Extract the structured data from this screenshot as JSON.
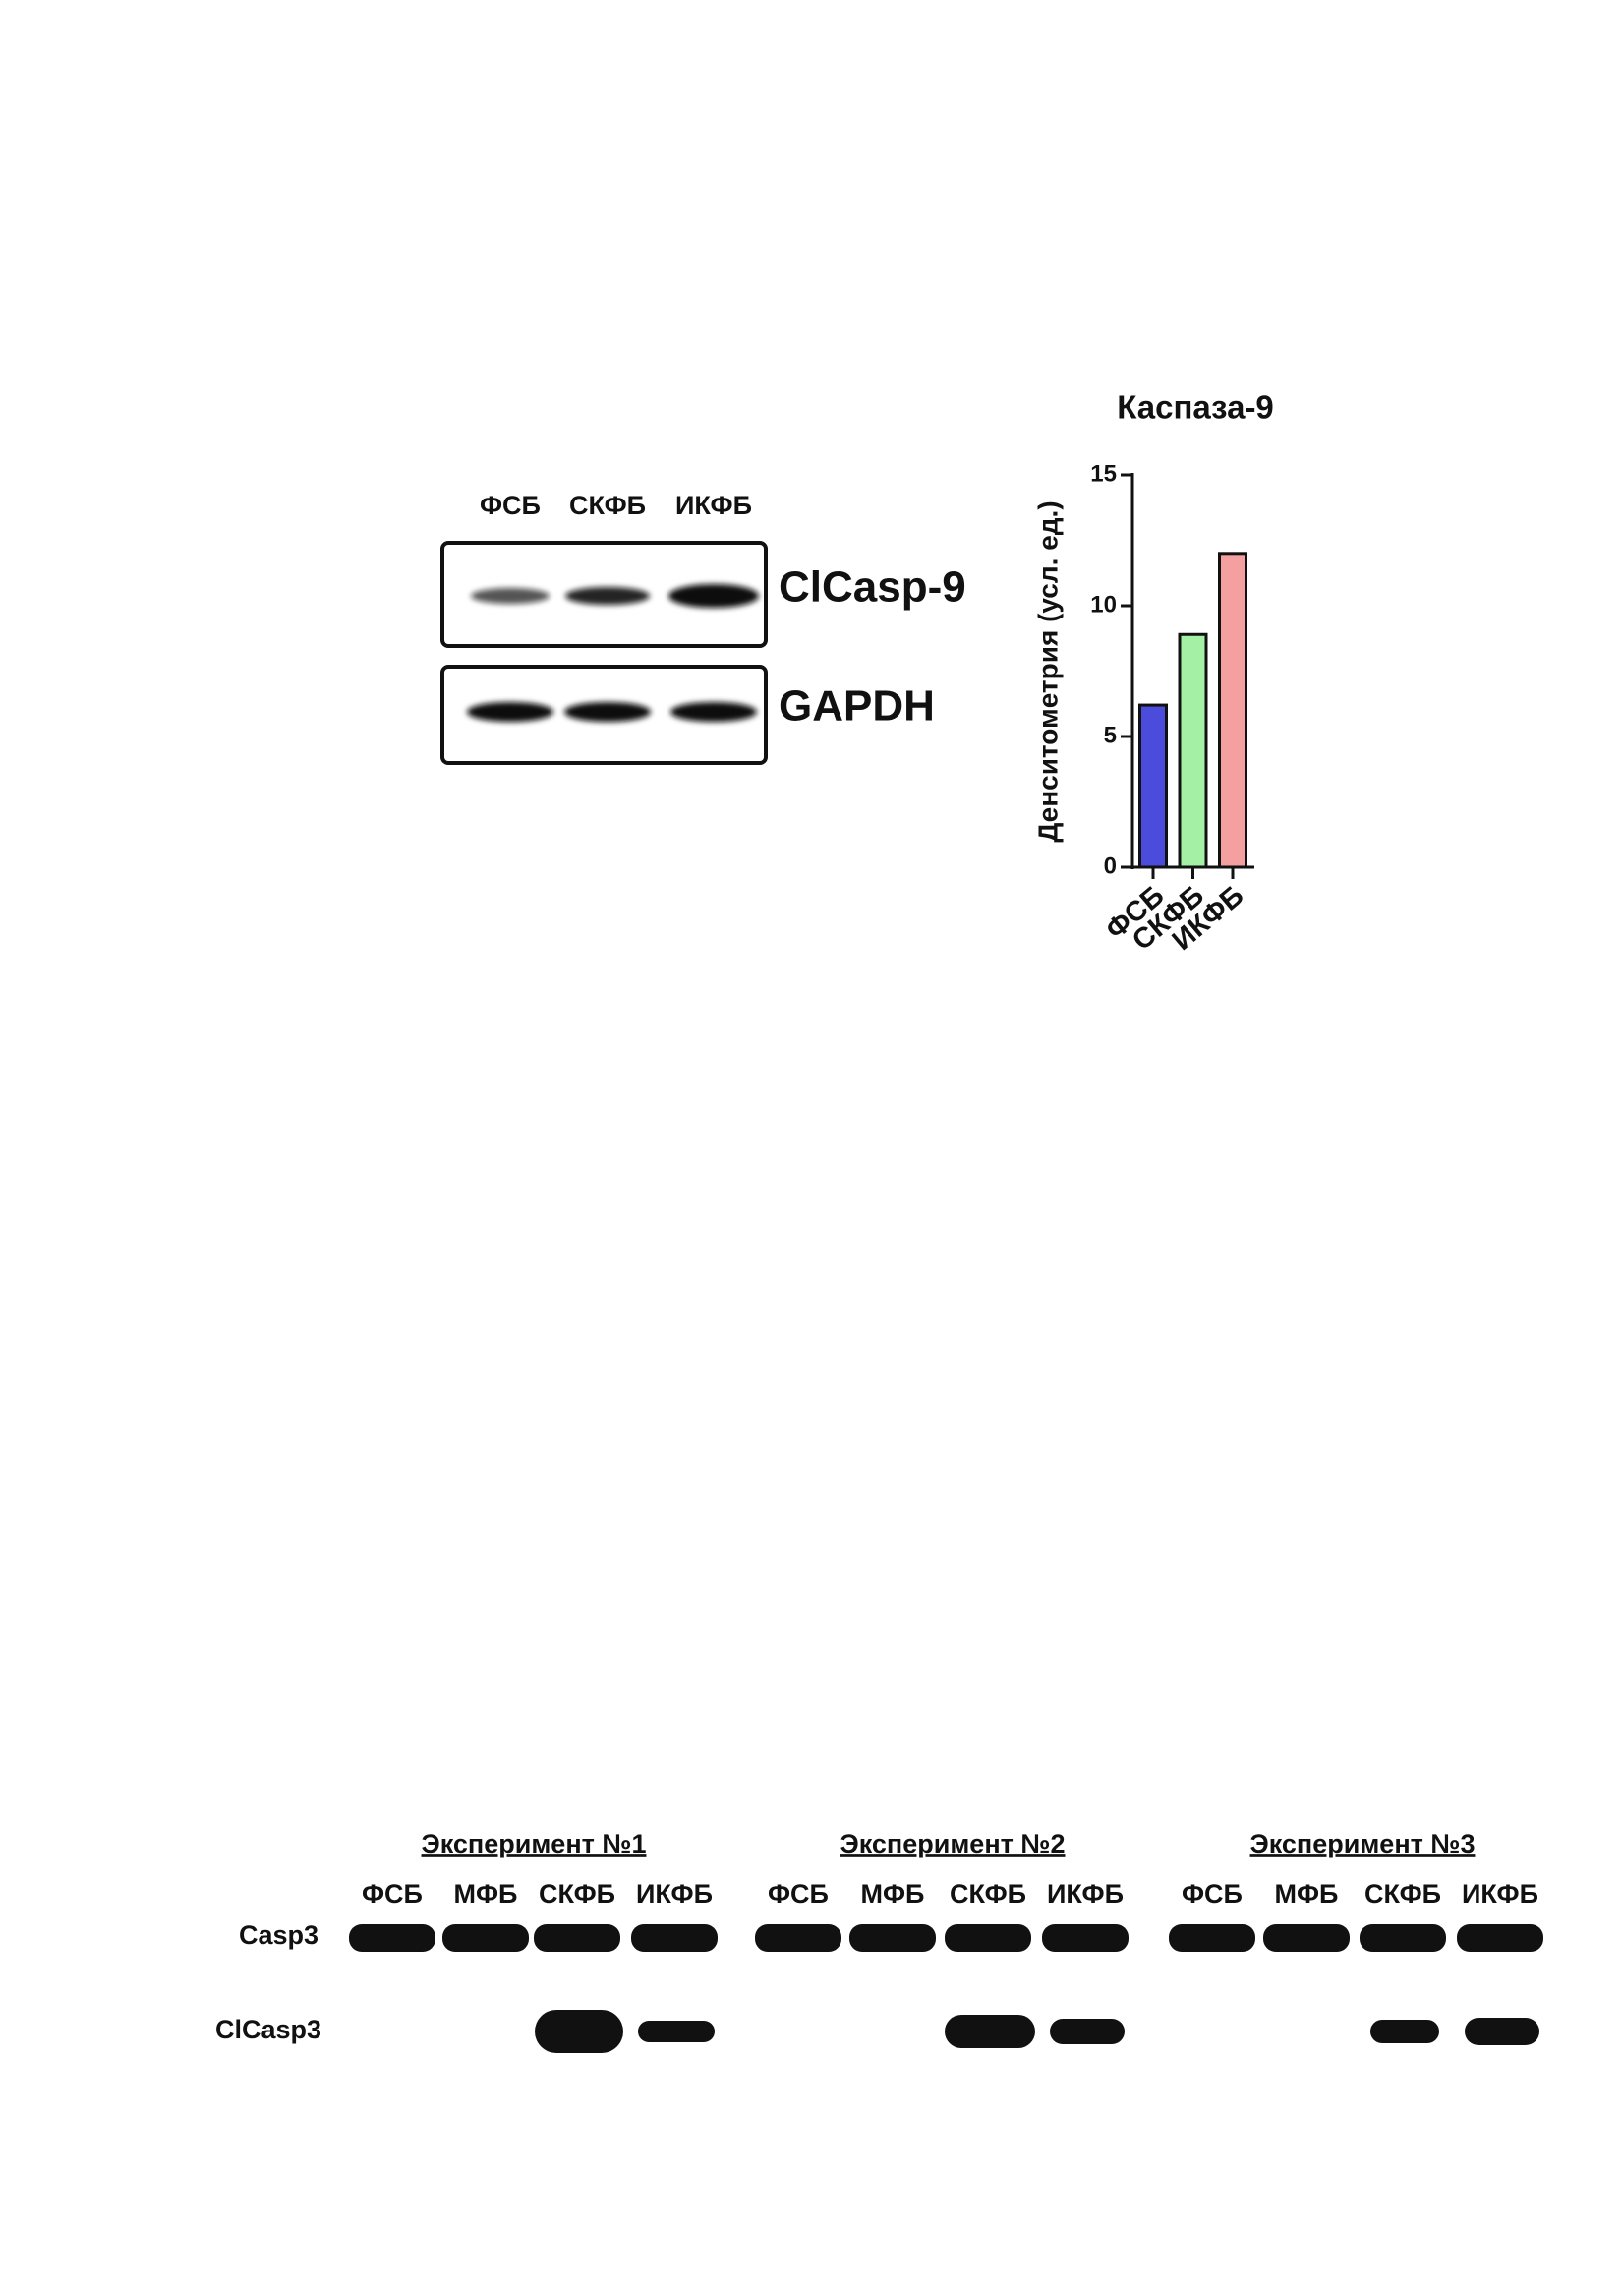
{
  "blot1": {
    "lanes": [
      "ФСБ",
      "СКФБ",
      "ИКФБ"
    ],
    "rows": [
      "ClCasp-9",
      "GAPDH"
    ]
  },
  "chart_data": {
    "type": "bar",
    "title": "Каспаза-9",
    "y_label": "Денситометрия (усл. ед.)",
    "categories": [
      "ФСБ",
      "СКФБ",
      "ИКФБ"
    ],
    "values": [
      6.2,
      8.9,
      12
    ],
    "colors": [
      "#4b4bdc",
      "#a4f0a4",
      "#f4a0a0"
    ],
    "ylim": [
      0,
      15
    ],
    "yticks": [
      0,
      5,
      10,
      15
    ]
  },
  "blot2": {
    "experiments": [
      {
        "title": "Эксперимент №1",
        "lanes": [
          "ФСБ",
          "МФБ",
          "СКФБ",
          "ИКФБ"
        ]
      },
      {
        "title": "Эксперимент №2",
        "lanes": [
          "ФСБ",
          "МФБ",
          "СКФБ",
          "ИКФБ"
        ]
      },
      {
        "title": "Эксперимент №3",
        "lanes": [
          "ФСБ",
          "МФБ",
          "СКФБ",
          "ИКФБ"
        ]
      }
    ],
    "rows": [
      "Casp3",
      "ClCasp3"
    ]
  }
}
